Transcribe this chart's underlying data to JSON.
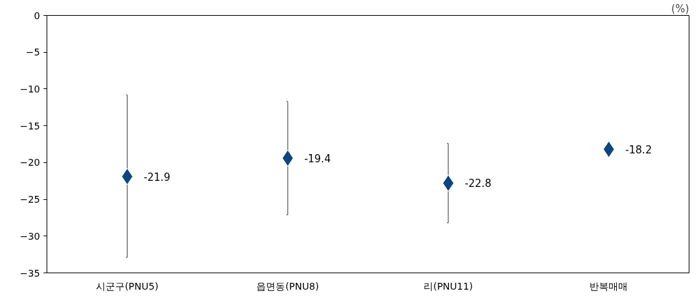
{
  "chart_data": {
    "type": "scatter",
    "ylabel": "(%)",
    "categories": [
      "시군구(PNU5)",
      "읍면동(PNU8)",
      "리(PNU11)",
      "반복매매"
    ],
    "series": [
      {
        "color": "#0b4680",
        "values": [
          -21.9,
          -19.4,
          -22.8,
          -18.2
        ],
        "errors": [
          [
            -32.9,
            -10.8
          ],
          [
            -27.1,
            -11.7
          ],
          [
            -28.2,
            -17.4
          ],
          null
        ]
      }
    ],
    "ylim": [
      -35,
      0
    ],
    "yticks": [
      0,
      -5,
      -10,
      -15,
      -20,
      -25,
      -30,
      -35
    ],
    "marker": "diamond",
    "data_labels": true,
    "grid": false
  }
}
